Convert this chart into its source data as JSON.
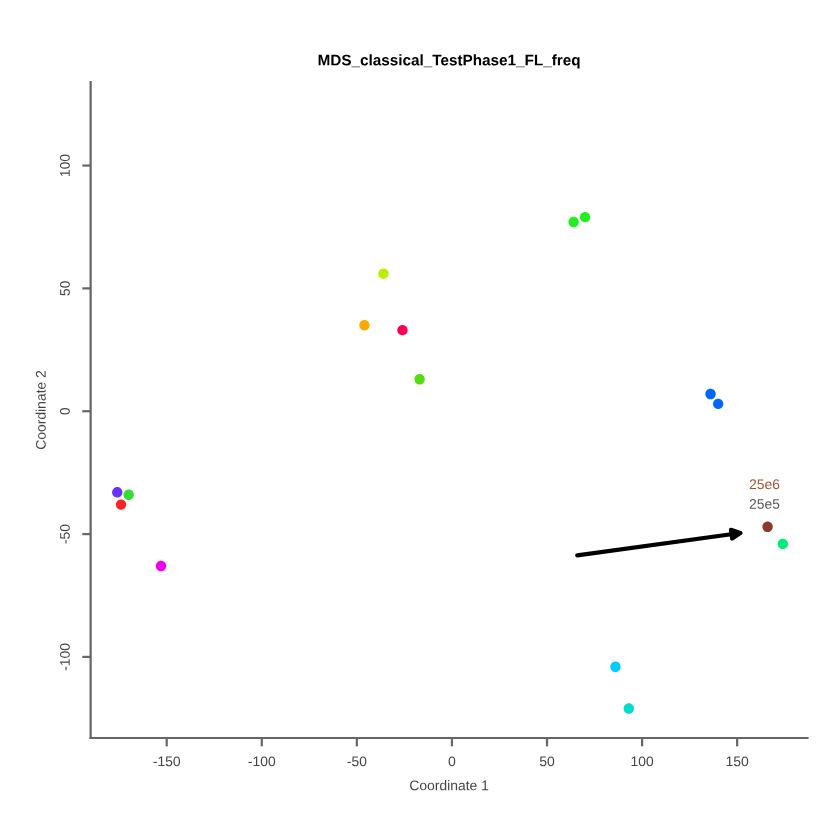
{
  "chart_data": {
    "type": "scatter",
    "title": "MDS_classical_TestPhase1_FL_freq",
    "xlabel": "Coordinate 1",
    "ylabel": "Coordinate 2",
    "xlim": [
      -190,
      187
    ],
    "ylim": [
      -133,
      134
    ],
    "xticks": [
      -150,
      -100,
      -50,
      0,
      50,
      100,
      150
    ],
    "yticks": [
      -100,
      -50,
      0,
      50,
      100
    ],
    "grid": false,
    "legend": false,
    "marker": "circle",
    "series": [
      {
        "color": "#22ee22",
        "x": [
          64,
          70
        ],
        "values": [
          77,
          79
        ]
      },
      {
        "color": "#bbee00",
        "x": [
          -36
        ],
        "values": [
          56
        ]
      },
      {
        "color": "#ffaa00",
        "x": [
          -46
        ],
        "values": [
          35
        ]
      },
      {
        "color": "#ff0055",
        "x": [
          -26
        ],
        "values": [
          33
        ]
      },
      {
        "color": "#55dd11",
        "x": [
          -17
        ],
        "values": [
          13
        ]
      },
      {
        "color": "#0066ff",
        "x": [
          136,
          140
        ],
        "values": [
          7,
          3
        ]
      },
      {
        "color": "#6633ff",
        "x": [
          -176
        ],
        "values": [
          -33
        ]
      },
      {
        "color": "#33dd33",
        "x": [
          -170
        ],
        "values": [
          -34
        ]
      },
      {
        "color": "#ff2222",
        "x": [
          -174
        ],
        "values": [
          -38
        ]
      },
      {
        "color": "#ee00ee",
        "x": [
          -153
        ],
        "values": [
          -63
        ]
      },
      {
        "color": "#8b3a2a",
        "x": [
          166
        ],
        "values": [
          -47
        ]
      },
      {
        "color": "#00ee77",
        "x": [
          174
        ],
        "values": [
          -54
        ]
      },
      {
        "color": "#00ccff",
        "x": [
          86
        ],
        "values": [
          -104
        ]
      },
      {
        "color": "#00ddcc",
        "x": [
          93
        ],
        "values": [
          -121
        ]
      }
    ],
    "annotations": [
      "25e6",
      "25e5"
    ]
  }
}
